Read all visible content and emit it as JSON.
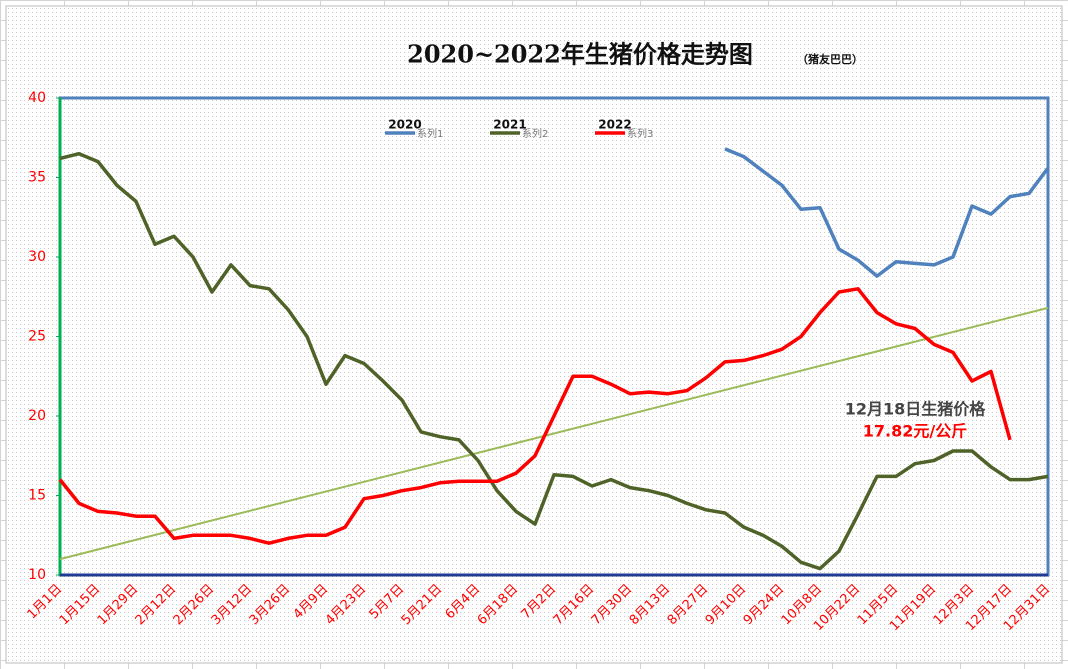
{
  "chart_data": {
    "type": "line",
    "title": "2020~2022年生猪价格走势图",
    "subtitle": "（猪友巴巴）",
    "categories": [
      "1月1日",
      null,
      "1月15日",
      null,
      "1月29日",
      null,
      "2月12日",
      null,
      "2月26日",
      null,
      "3月12日",
      null,
      "3月26日",
      null,
      "4月9日",
      null,
      "4月23日",
      null,
      "5月7日",
      null,
      "5月21日",
      null,
      "6月4日",
      null,
      "6月18日",
      null,
      "7月2日",
      null,
      "7月16日",
      null,
      "7月30日",
      null,
      "8月13日",
      null,
      "8月27日",
      null,
      "9月10日",
      null,
      "9月24日",
      null,
      "10月8日",
      null,
      "10月22日",
      null,
      "11月5日",
      null,
      "11月19日",
      null,
      "12月3日",
      null,
      "12月17日",
      null,
      "12月31日"
    ],
    "series": [
      {
        "name": "系列1",
        "label": "2020",
        "color": "#4f81bd",
        "values": [
          null,
          null,
          null,
          null,
          null,
          null,
          null,
          null,
          null,
          null,
          null,
          null,
          null,
          null,
          null,
          null,
          null,
          null,
          null,
          null,
          null,
          null,
          null,
          null,
          null,
          null,
          null,
          null,
          null,
          null,
          null,
          null,
          null,
          null,
          null,
          36.8,
          36.3,
          35.4,
          34.5,
          33.0,
          33.1,
          30.5,
          29.8,
          28.8,
          29.7,
          29.6,
          29.5,
          30.0,
          33.2,
          32.7,
          33.8,
          34.0,
          35.6
        ]
      },
      {
        "name": "系列2",
        "label": "2021",
        "color": "#4f6228",
        "values": [
          36.2,
          36.5,
          36.0,
          34.5,
          33.5,
          30.8,
          31.3,
          30.0,
          27.8,
          29.5,
          28.2,
          28.0,
          26.7,
          25.0,
          22.0,
          23.8,
          23.3,
          22.2,
          21.0,
          19.0,
          18.7,
          18.5,
          17.2,
          15.3,
          14.0,
          13.2,
          16.3,
          16.2,
          15.6,
          16.0,
          15.5,
          15.3,
          15.0,
          14.5,
          14.1,
          13.9,
          13.0,
          12.5,
          11.8,
          10.8,
          10.4,
          11.5,
          13.8,
          16.2,
          16.2,
          17.0,
          17.2,
          17.8,
          17.8,
          16.8,
          16.0,
          16.0,
          16.2
        ]
      },
      {
        "name": "系列3",
        "label": "2022",
        "color": "#ff0000",
        "values": [
          16.0,
          14.5,
          14.0,
          13.9,
          13.7,
          13.7,
          12.3,
          12.5,
          12.5,
          12.5,
          12.3,
          12.0,
          12.3,
          12.5,
          12.5,
          13.0,
          14.8,
          15.0,
          15.3,
          15.5,
          15.8,
          15.9,
          15.9,
          15.9,
          16.4,
          17.5,
          20.0,
          22.5,
          22.5,
          22.0,
          21.4,
          21.5,
          21.4,
          21.6,
          22.4,
          23.4,
          23.5,
          23.8,
          24.2,
          25.0,
          26.5,
          27.8,
          28.0,
          26.5,
          25.8,
          25.5,
          24.5,
          24.0,
          22.2,
          22.8,
          18.5,
          null,
          null
        ]
      }
    ],
    "trendline": {
      "start": 11.0,
      "end": 26.8,
      "color": "#9bbb59"
    },
    "annotation": {
      "line1": "12月18日生猪价格",
      "line2": "17.82元/公斤"
    },
    "ylim": [
      10,
      40
    ],
    "yticks": [
      10,
      15,
      20,
      25,
      30,
      35,
      40
    ]
  }
}
